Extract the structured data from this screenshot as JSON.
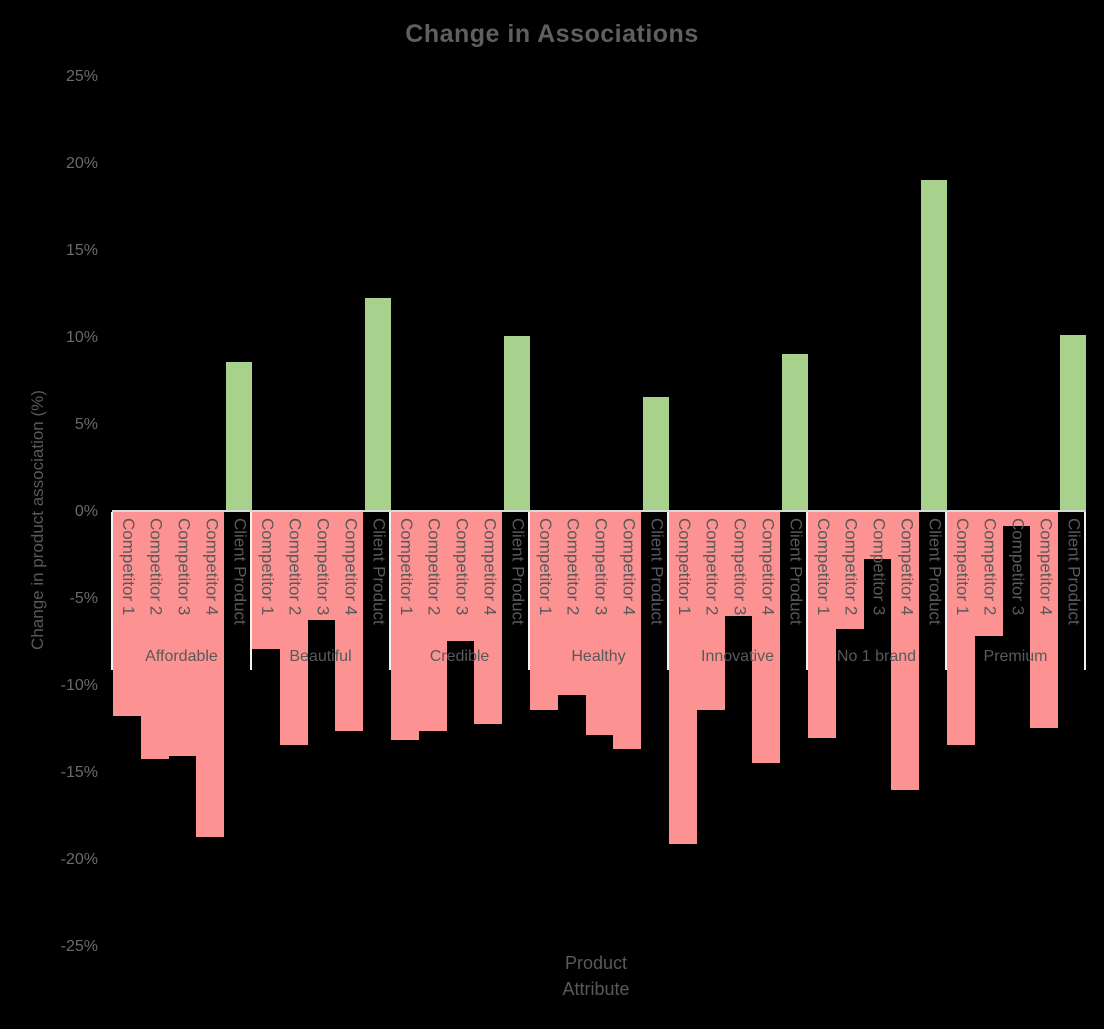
{
  "chart_data": {
    "type": "bar",
    "title": "Change in Associations",
    "ylabel": "Change in product association (%)",
    "xlabel": "Product\nAttribute",
    "ylim": [
      -25,
      25
    ],
    "grid": false,
    "legend": "none",
    "y_ticks": [
      {
        "label": "25%",
        "value": 25
      },
      {
        "label": "20%",
        "value": 20
      },
      {
        "label": "15%",
        "value": 15
      },
      {
        "label": "10%",
        "value": 10
      },
      {
        "label": "5%",
        "value": 5
      },
      {
        "label": "0%",
        "value": 0
      },
      {
        "label": "-5%",
        "value": -5
      },
      {
        "label": "-10%",
        "value": -10
      },
      {
        "label": "-15%",
        "value": -15
      },
      {
        "label": "-20%",
        "value": -20
      },
      {
        "label": "-25%",
        "value": -25
      }
    ],
    "categories": [
      "Affordable",
      "Beautiful",
      "Credible",
      "Healthy",
      "Innovative",
      "No 1 brand",
      "Premium"
    ],
    "series": [
      {
        "name": "Competitor 1",
        "values": [
          -11.7,
          -7.9,
          -13.1,
          -11.4,
          -19.1,
          -13.0,
          -13.4
        ]
      },
      {
        "name": "Competitor 2",
        "values": [
          -14.2,
          -13.4,
          -12.6,
          -10.5,
          -11.4,
          -6.7,
          -7.1
        ]
      },
      {
        "name": "Competitor 3",
        "values": [
          -14.0,
          -6.2,
          -7.4,
          -12.8,
          -6.0,
          -2.7,
          -0.8
        ]
      },
      {
        "name": "Competitor 4",
        "values": [
          -18.7,
          -12.6,
          -12.2,
          -13.6,
          -14.4,
          -16.0,
          -12.4
        ]
      },
      {
        "name": "Client Product",
        "values": [
          8.6,
          12.3,
          10.1,
          6.6,
          9.1,
          19.1,
          10.2
        ]
      }
    ]
  },
  "colors": {
    "background": "#000000",
    "bar_negative": "#fc9292",
    "bar_positive": "#a9d18e",
    "axis_line": "#d9d9d9",
    "separator": "#f2f2f2",
    "text_primary": "#595959",
    "text_ticks": "#6a6a6a",
    "title": "#5f5f5f"
  }
}
